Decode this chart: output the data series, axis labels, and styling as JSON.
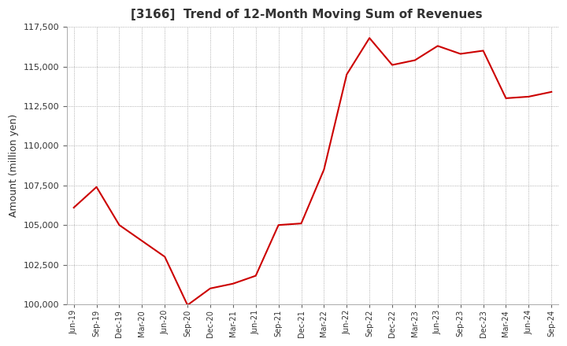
{
  "title": "[3166]  Trend of 12-Month Moving Sum of Revenues",
  "ylabel": "Amount (million yen)",
  "line_color": "#cc0000",
  "background_color": "#ffffff",
  "plot_bg_color": "#ffffff",
  "grid_color": "#999999",
  "title_color": "#333333",
  "ylim": [
    100000,
    117500
  ],
  "yticks": [
    100000,
    102500,
    105000,
    107500,
    110000,
    112500,
    115000,
    117500
  ],
  "x_labels": [
    "Jun-19",
    "Sep-19",
    "Dec-19",
    "Mar-20",
    "Jun-20",
    "Sep-20",
    "Dec-20",
    "Mar-21",
    "Jun-21",
    "Sep-21",
    "Dec-21",
    "Mar-22",
    "Jun-22",
    "Sep-22",
    "Dec-22",
    "Mar-23",
    "Jun-23",
    "Sep-23",
    "Dec-23",
    "Mar-24",
    "Jun-24",
    "Sep-24"
  ],
  "values": [
    106100,
    107400,
    105000,
    104000,
    103000,
    99950,
    101000,
    101300,
    101800,
    105000,
    105100,
    108500,
    114500,
    116800,
    115100,
    115400,
    116300,
    115800,
    116000,
    113000,
    113100,
    113400
  ]
}
